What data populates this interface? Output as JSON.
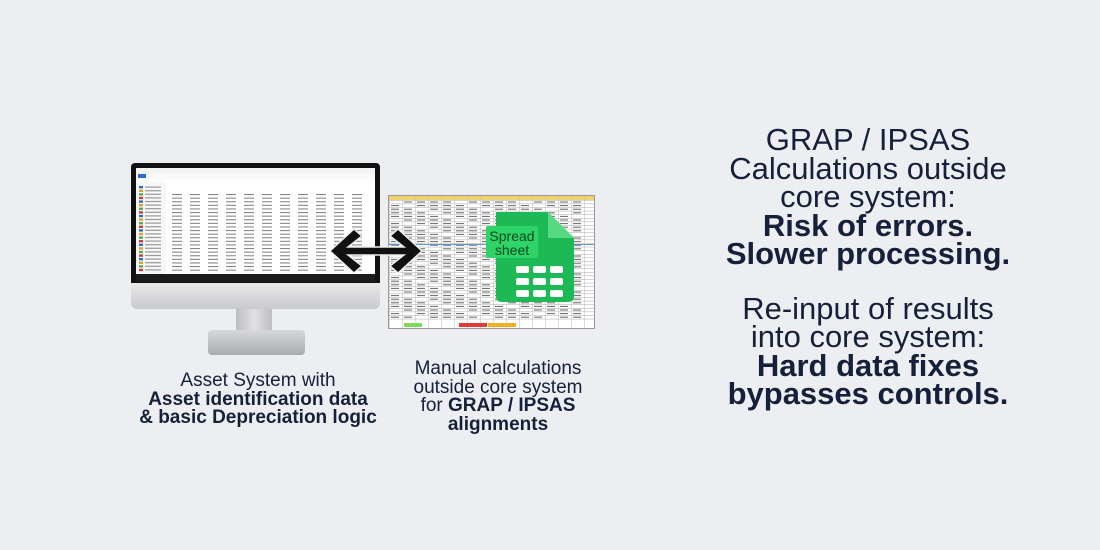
{
  "left_caption": {
    "line1": "Asset System with",
    "line2": "Asset identification data",
    "line3": "& basic Depreciation logic"
  },
  "middle_caption": {
    "line1": "Manual calculations",
    "line2": "outside core system",
    "line3_prefix": "for ",
    "line3_bold": "GRAP / IPSAS",
    "line4": "alignments"
  },
  "spreadsheet_icon": {
    "label_line1": "Spread",
    "label_line2": "sheet",
    "color": "#1db954"
  },
  "right_panel": {
    "block1": {
      "line1": "GRAP / IPSAS",
      "line2": "Calculations outside",
      "line3": "core system:",
      "bold1": "Risk of errors.",
      "bold2": "Slower processing."
    },
    "block2": {
      "line1": "Re-input of results",
      "line2": "into core system:",
      "bold1": "Hard data fixes",
      "bold2": "bypasses controls."
    }
  },
  "icons": [
    "desktop-monitor",
    "bidirectional-arrow",
    "spreadsheet-file"
  ]
}
